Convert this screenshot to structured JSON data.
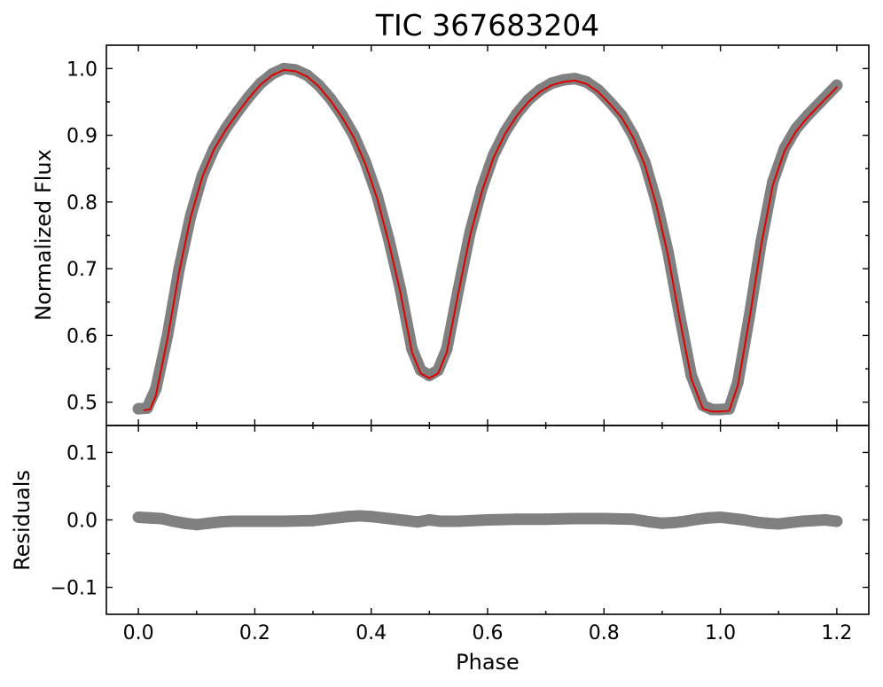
{
  "chart_data": {
    "type": "line",
    "title": "TIC 367683204",
    "xlabel": "Phase",
    "colors": {
      "data_points": "#808080",
      "model": "#e00000",
      "axes": "#000000"
    },
    "grid": false,
    "panels": [
      {
        "name": "flux",
        "ylabel": "Normalized Flux",
        "xlim": [
          -0.055,
          1.255
        ],
        "ylim": [
          0.465,
          1.035
        ],
        "x_ticks": [
          0.0,
          0.2,
          0.4,
          0.6,
          0.8,
          1.0,
          1.2
        ],
        "y_ticks": [
          0.5,
          0.6,
          0.7,
          0.8,
          0.9,
          1.0
        ],
        "y_tick_labels": [
          "0.5",
          "0.6",
          "0.7",
          "0.8",
          "0.9",
          "1.0"
        ],
        "series": [
          {
            "role": "observed data (grey points)",
            "x": [
              0.0,
              0.015,
              0.03,
              0.05,
              0.07,
              0.09,
              0.11,
              0.13,
              0.15,
              0.17,
              0.19,
              0.21,
              0.23,
              0.25,
              0.27,
              0.29,
              0.31,
              0.33,
              0.35,
              0.37,
              0.39,
              0.41,
              0.43,
              0.45,
              0.47,
              0.485,
              0.5,
              0.515,
              0.53,
              0.55,
              0.57,
              0.59,
              0.61,
              0.63,
              0.65,
              0.67,
              0.69,
              0.71,
              0.73,
              0.75,
              0.77,
              0.79,
              0.81,
              0.83,
              0.85,
              0.87,
              0.89,
              0.91,
              0.93,
              0.95,
              0.97,
              0.985,
              1.0,
              1.015,
              1.03,
              1.05,
              1.07,
              1.09,
              1.11,
              1.13,
              1.15,
              1.17,
              1.2
            ],
            "y": [
              0.49,
              0.491,
              0.52,
              0.6,
              0.7,
              0.78,
              0.84,
              0.88,
              0.91,
              0.935,
              0.958,
              0.978,
              0.992,
              1.0,
              0.998,
              0.99,
              0.975,
              0.955,
              0.93,
              0.9,
              0.86,
              0.81,
              0.745,
              0.67,
              0.58,
              0.548,
              0.54,
              0.548,
              0.58,
              0.67,
              0.755,
              0.82,
              0.87,
              0.905,
              0.932,
              0.953,
              0.968,
              0.978,
              0.983,
              0.985,
              0.98,
              0.968,
              0.95,
              0.93,
              0.9,
              0.86,
              0.8,
              0.725,
              0.63,
              0.54,
              0.495,
              0.489,
              0.489,
              0.49,
              0.53,
              0.63,
              0.74,
              0.83,
              0.88,
              0.91,
              0.93,
              0.948,
              0.975
            ]
          },
          {
            "role": "model (red line)",
            "x": [
              0.01,
              0.02,
              0.03,
              0.05,
              0.07,
              0.09,
              0.11,
              0.13,
              0.15,
              0.17,
              0.19,
              0.21,
              0.23,
              0.25,
              0.27,
              0.29,
              0.31,
              0.33,
              0.35,
              0.37,
              0.39,
              0.41,
              0.43,
              0.45,
              0.47,
              0.485,
              0.5,
              0.515,
              0.53,
              0.55,
              0.57,
              0.59,
              0.61,
              0.63,
              0.65,
              0.67,
              0.69,
              0.71,
              0.73,
              0.75,
              0.77,
              0.79,
              0.81,
              0.83,
              0.85,
              0.87,
              0.89,
              0.91,
              0.93,
              0.95,
              0.97,
              0.985,
              1.0,
              1.015,
              1.03,
              1.05,
              1.07,
              1.09,
              1.11,
              1.13,
              1.15,
              1.17,
              1.2
            ],
            "y": [
              0.488,
              0.489,
              0.51,
              0.595,
              0.695,
              0.778,
              0.838,
              0.879,
              0.908,
              0.933,
              0.956,
              0.976,
              0.99,
              0.998,
              0.996,
              0.988,
              0.973,
              0.952,
              0.927,
              0.897,
              0.857,
              0.806,
              0.74,
              0.665,
              0.575,
              0.543,
              0.536,
              0.543,
              0.575,
              0.665,
              0.75,
              0.815,
              0.866,
              0.902,
              0.929,
              0.95,
              0.965,
              0.975,
              0.98,
              0.982,
              0.977,
              0.965,
              0.947,
              0.927,
              0.897,
              0.856,
              0.795,
              0.72,
              0.625,
              0.535,
              0.49,
              0.486,
              0.486,
              0.487,
              0.525,
              0.625,
              0.735,
              0.825,
              0.876,
              0.906,
              0.927,
              0.945,
              0.972
            ]
          }
        ]
      },
      {
        "name": "residuals",
        "ylabel": "Residuals",
        "xlim": [
          -0.055,
          1.255
        ],
        "ylim": [
          -0.14,
          0.14
        ],
        "x_ticks": [
          0.0,
          0.2,
          0.4,
          0.6,
          0.8,
          1.0,
          1.2
        ],
        "x_tick_labels": [
          "0.0",
          "0.2",
          "0.4",
          "0.6",
          "0.8",
          "1.0",
          "1.2"
        ],
        "y_ticks": [
          -0.1,
          0.0,
          0.1
        ],
        "y_tick_labels": [
          "−0.1",
          "0.0",
          "0.1"
        ],
        "series": [
          {
            "role": "residuals (grey points)",
            "x": [
              0.0,
              0.02,
              0.04,
              0.06,
              0.08,
              0.1,
              0.12,
              0.14,
              0.16,
              0.2,
              0.25,
              0.3,
              0.33,
              0.36,
              0.38,
              0.4,
              0.42,
              0.44,
              0.46,
              0.48,
              0.5,
              0.52,
              0.55,
              0.6,
              0.65,
              0.7,
              0.75,
              0.8,
              0.85,
              0.88,
              0.9,
              0.92,
              0.94,
              0.96,
              0.98,
              1.0,
              1.02,
              1.04,
              1.06,
              1.08,
              1.1,
              1.12,
              1.14,
              1.16,
              1.18,
              1.2
            ],
            "y": [
              0.004,
              0.003,
              0.002,
              -0.002,
              -0.005,
              -0.007,
              -0.005,
              -0.003,
              -0.002,
              -0.002,
              -0.002,
              -0.001,
              0.002,
              0.005,
              0.006,
              0.005,
              0.003,
              0.001,
              -0.001,
              -0.003,
              0.0,
              -0.002,
              -0.002,
              0.0,
              0.001,
              0.001,
              0.002,
              0.002,
              0.001,
              -0.003,
              -0.005,
              -0.004,
              -0.002,
              0.001,
              0.003,
              0.004,
              0.002,
              0.0,
              -0.003,
              -0.005,
              -0.006,
              -0.004,
              -0.002,
              -0.001,
              0.0,
              -0.002
            ]
          }
        ]
      }
    ]
  }
}
